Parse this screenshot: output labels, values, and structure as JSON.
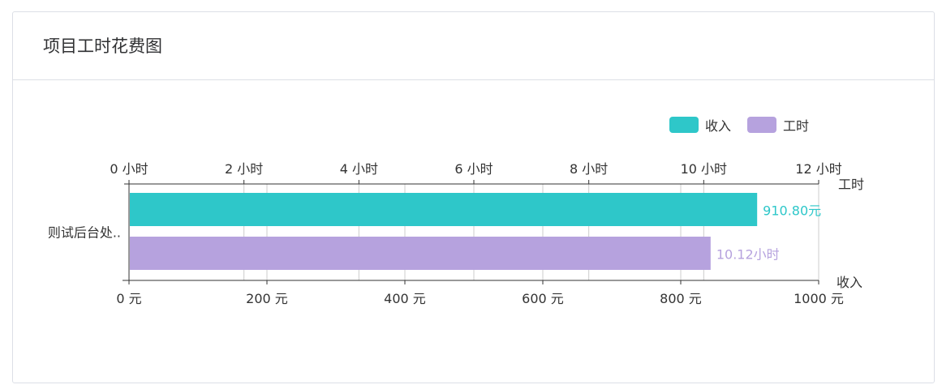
{
  "card": {
    "title": "项目工时花费图"
  },
  "colors": {
    "income": "#2ec7c9",
    "hours": "#b6a2de",
    "axis": "#333333",
    "grid": "#cccccc",
    "text": "#333333"
  },
  "chart_data": {
    "type": "bar",
    "orientation": "horizontal",
    "categories": [
      "则试后台处.."
    ],
    "series": [
      {
        "name": "收入",
        "values": [
          910.8
        ],
        "label": "910.80元",
        "axis": "bottom",
        "color": "#2ec7c9"
      },
      {
        "name": "工时",
        "values": [
          10.12
        ],
        "label": "10.12小时",
        "axis": "top",
        "color": "#b6a2de"
      }
    ],
    "top_axis": {
      "name": "工时",
      "min": 0,
      "max": 12,
      "ticks": [
        0,
        2,
        4,
        6,
        8,
        10,
        12
      ],
      "tick_labels": [
        "0 小时",
        "2 小时",
        "4 小时",
        "6 小时",
        "8 小时",
        "10 小时",
        "12 小时"
      ]
    },
    "bottom_axis": {
      "name": "收入",
      "min": 0,
      "max": 1000,
      "ticks": [
        0,
        200,
        400,
        600,
        800,
        1000
      ],
      "tick_labels": [
        "0 元",
        "200 元",
        "400 元",
        "600 元",
        "800 元",
        "1000 元"
      ]
    },
    "legend": {
      "position": "top-right",
      "items": [
        "收入",
        "工时"
      ]
    },
    "grid": true
  }
}
